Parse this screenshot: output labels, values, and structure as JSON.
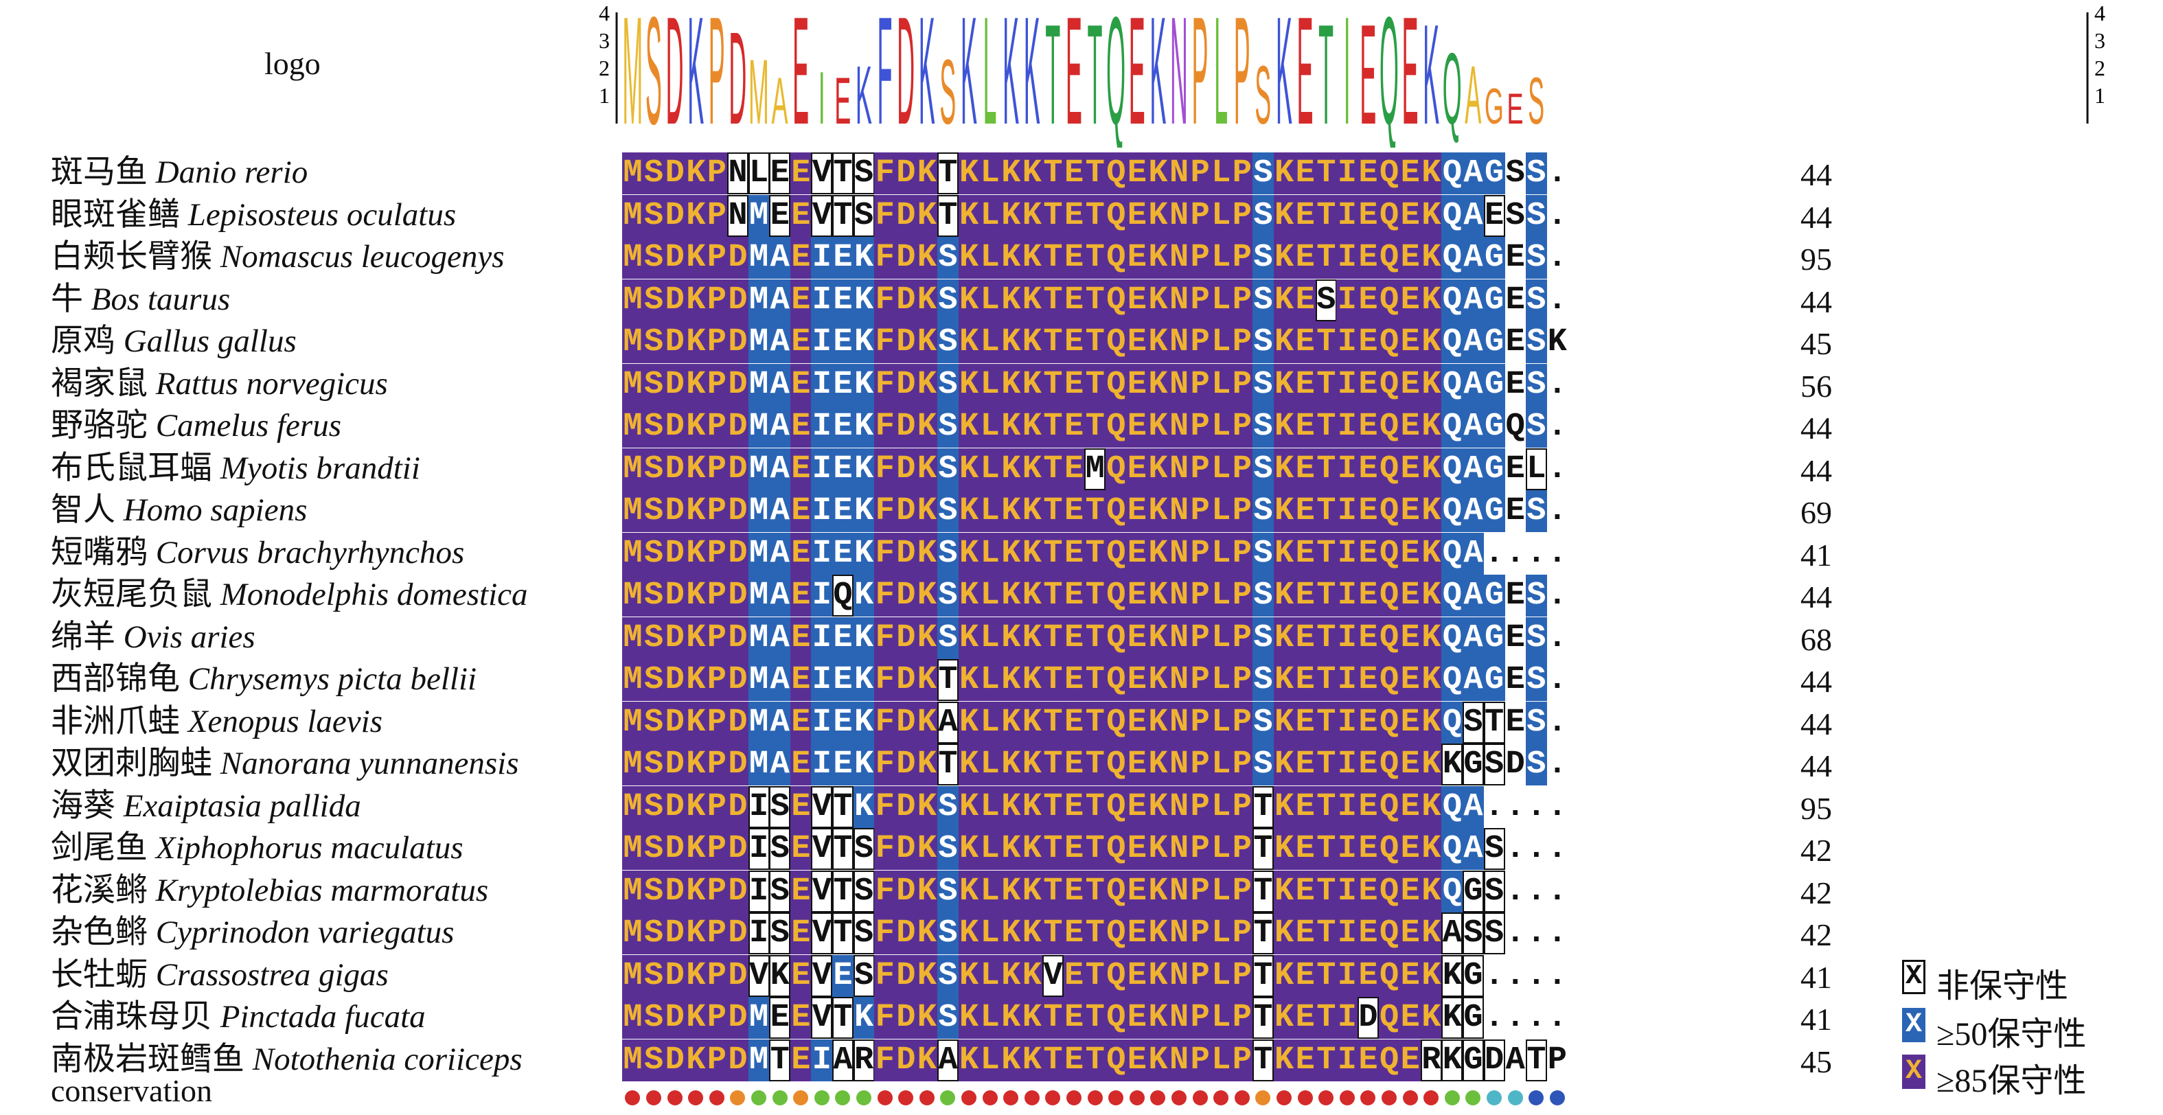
{
  "logo_label": "logo",
  "conservation_label": "conservation",
  "logo_axis_ticks": [
    "4",
    "3",
    "2",
    "1"
  ],
  "logo_consensus": "MSDKPDMAEIEKFDKSKLKKTETQEKNPLPSKETIEQEKQAGES",
  "sequences": [
    {
      "name_zh": "斑马鱼",
      "name_sci": "Danio rerio",
      "seq": "MSDKPNLEEVTSFDKTKLKKTETQEKNPLPSKETIEQEKQAGSS.",
      "end": "44"
    },
    {
      "name_zh": "眼斑雀鳝",
      "name_sci": "Lepisosteus oculatus",
      "seq": "MSDKPNMEEVTSFDKTKLKKTETQEKNPLPSKETIEQEKQAESS.",
      "end": "44"
    },
    {
      "name_zh": "白颊长臂猴",
      "name_sci": "Nomascus leucogenys",
      "seq": "MSDKPDMAEIEKFDKSKLKKTETQEKNPLPSKETIEQEKQAGES.",
      "end": "95"
    },
    {
      "name_zh": "牛",
      "name_sci": "Bos taurus",
      "seq": "MSDKPDMAEIEKFDKSKLKKTETQEKNPLPSKESIEQEKQAGES.",
      "end": "44"
    },
    {
      "name_zh": "原鸡",
      "name_sci": "Gallus gallus",
      "seq": "MSDKPDMAEIEKFDKSKLKKTETQEKNPLPSKETIEQEKQAGESK",
      "end": "45"
    },
    {
      "name_zh": "褐家鼠",
      "name_sci": "Rattus norvegicus",
      "seq": "MSDKPDMAEIEKFDKSKLKKTETQEKNPLPSKETIEQEKQAGES.",
      "end": "56"
    },
    {
      "name_zh": "野骆驼",
      "name_sci": "Camelus ferus",
      "seq": "MSDKPDMAEIEKFDKSKLKKTETQEKNPLPSKETIEQEKQAGQS.",
      "end": "44"
    },
    {
      "name_zh": "布氏鼠耳蝠",
      "name_sci": "Myotis brandtii",
      "seq": "MSDKPDMAEIEKFDKSKLKKTEMQEKNPLPSKETIEQEKQAGEL.",
      "end": "44"
    },
    {
      "name_zh": "智人",
      "name_sci": "Homo sapiens",
      "seq": "MSDKPDMAEIEKFDKSKLKKTETQEKNPLPSKETIEQEKQAGES.",
      "end": "69"
    },
    {
      "name_zh": "短嘴鸦",
      "name_sci": "Corvus brachyrhynchos",
      "seq": "MSDKPDMAEIEKFDKSKLKKTETQEKNPLPSKETIEQEKQA....",
      "end": "41"
    },
    {
      "name_zh": "灰短尾负鼠",
      "name_sci": "Monodelphis domestica",
      "seq": "MSDKPDMAEIQKFDKSKLKKTETQEKNPLPSKETIEQEKQAGES.",
      "end": "44"
    },
    {
      "name_zh": "绵羊",
      "name_sci": "Ovis aries",
      "seq": "MSDKPDMAEIEKFDKSKLKKTETQEKNPLPSKETIEQEKQAGES.",
      "end": "68"
    },
    {
      "name_zh": "西部锦龟",
      "name_sci": "Chrysemys picta bellii",
      "seq": "MSDKPDMAEIEKFDKTKLKKTETQEKNPLPSKETIEQEKQAGES.",
      "end": "44"
    },
    {
      "name_zh": "非洲爪蛙",
      "name_sci": "Xenopus laevis",
      "seq": "MSDKPDMAEIEKFDKAKLKKTETQEKNPLPSKETIEQEKQSTES.",
      "end": "44"
    },
    {
      "name_zh": "双团刺胸蛙",
      "name_sci": "Nanorana yunnanensis",
      "seq": "MSDKPDMAEIEKFDKTKLKKTETQEKNPLPSKETIEQEKKGSDS.",
      "end": "44"
    },
    {
      "name_zh": "海葵",
      "name_sci": "Exaiptasia pallida",
      "seq": "MSDKPDISEVTKFDKSKLKKTETQEKNPLPTKETIEQEKQA....",
      "end": "95"
    },
    {
      "name_zh": "剑尾鱼",
      "name_sci": "Xiphophorus maculatus",
      "seq": "MSDKPDISEVTSFDKSKLKKTETQEKNPLPTKETIEQEKQAS...",
      "end": "42"
    },
    {
      "name_zh": "花溪鳉",
      "name_sci": "Kryptolebias marmoratus",
      "seq": "MSDKPDISEVTSFDKSKLKKTETQEKNPLPTKETIEQEKQGS...",
      "end": "42"
    },
    {
      "name_zh": "杂色鳉",
      "name_sci": "Cyprinodon variegatus",
      "seq": "MSDKPDISEVTSFDKSKLKKTETQEKNPLPTKETIEQEKASS...",
      "end": "42"
    },
    {
      "name_zh": "长牡蛎",
      "name_sci": "Crassostrea gigas",
      "seq": "MSDKPDVKEVESFDKSKLKKVETQEKNPLPTKETIEQEKKG....",
      "end": "41"
    },
    {
      "name_zh": "合浦珠母贝",
      "name_sci": "Pinctada fucata",
      "seq": "MSDKPDMEEVTKFDKSKLKKTETQEKNPLPTKETIDQEKKG....",
      "end": "41"
    },
    {
      "name_zh": "南极岩斑鳕鱼",
      "name_sci": "Notothenia coriiceps",
      "seq": "MSDKPDMTEIARFDKAKLKKTETQEKNPLPTKETIEQERKGDATP",
      "end": "45"
    }
  ],
  "legend": [
    {
      "symbol": "X",
      "label": "非保守性"
    },
    {
      "symbol": "X",
      "label": "≥50保守性"
    },
    {
      "symbol": "X",
      "label": "≥85保守性"
    }
  ],
  "colors": {
    "conserved85": "#5a2f94",
    "conserved50": "#2a65b5",
    "residue_text": "#f0b330",
    "dot_red": "#d42a2a",
    "dot_orange": "#e98a2a",
    "dot_green": "#6bbf3c",
    "dot_cyan": "#4fb6c8",
    "dot_blue": "#2e55b8"
  },
  "conservation_dots": [
    "red",
    "red",
    "red",
    "red",
    "red",
    "orange",
    "green",
    "green",
    "orange",
    "green",
    "green",
    "green",
    "red",
    "red",
    "red",
    "green",
    "red",
    "red",
    "red",
    "red",
    "red",
    "red",
    "red",
    "red",
    "red",
    "red",
    "red",
    "red",
    "red",
    "red",
    "orange",
    "red",
    "red",
    "red",
    "red",
    "red",
    "red",
    "red",
    "red",
    "green",
    "green",
    "cyan",
    "cyan",
    "blue",
    "blue"
  ]
}
